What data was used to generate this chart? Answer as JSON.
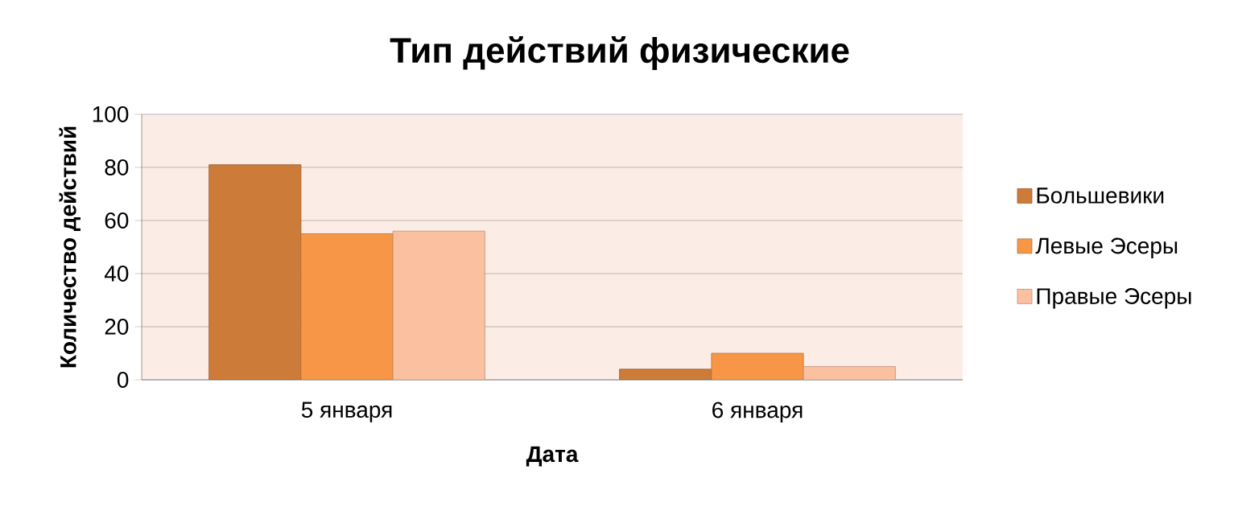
{
  "chart_data": {
    "type": "bar",
    "title": "Тип действий физические",
    "xlabel": "Дата",
    "ylabel": "Количество действий",
    "categories": [
      "5 января",
      "6 января"
    ],
    "series": [
      {
        "name": "Большевики",
        "color": "#cd7b38",
        "values": [
          81,
          4
        ]
      },
      {
        "name": "Левые Эсеры",
        "color": "#f79646",
        "values": [
          55,
          10
        ]
      },
      {
        "name": "Правые Эсеры",
        "color": "#fac0a0",
        "values": [
          56,
          5
        ]
      }
    ],
    "ylim": [
      0,
      100
    ],
    "yticks": [
      0,
      20,
      40,
      60,
      80,
      100
    ],
    "grid": "y",
    "legend": "right"
  }
}
